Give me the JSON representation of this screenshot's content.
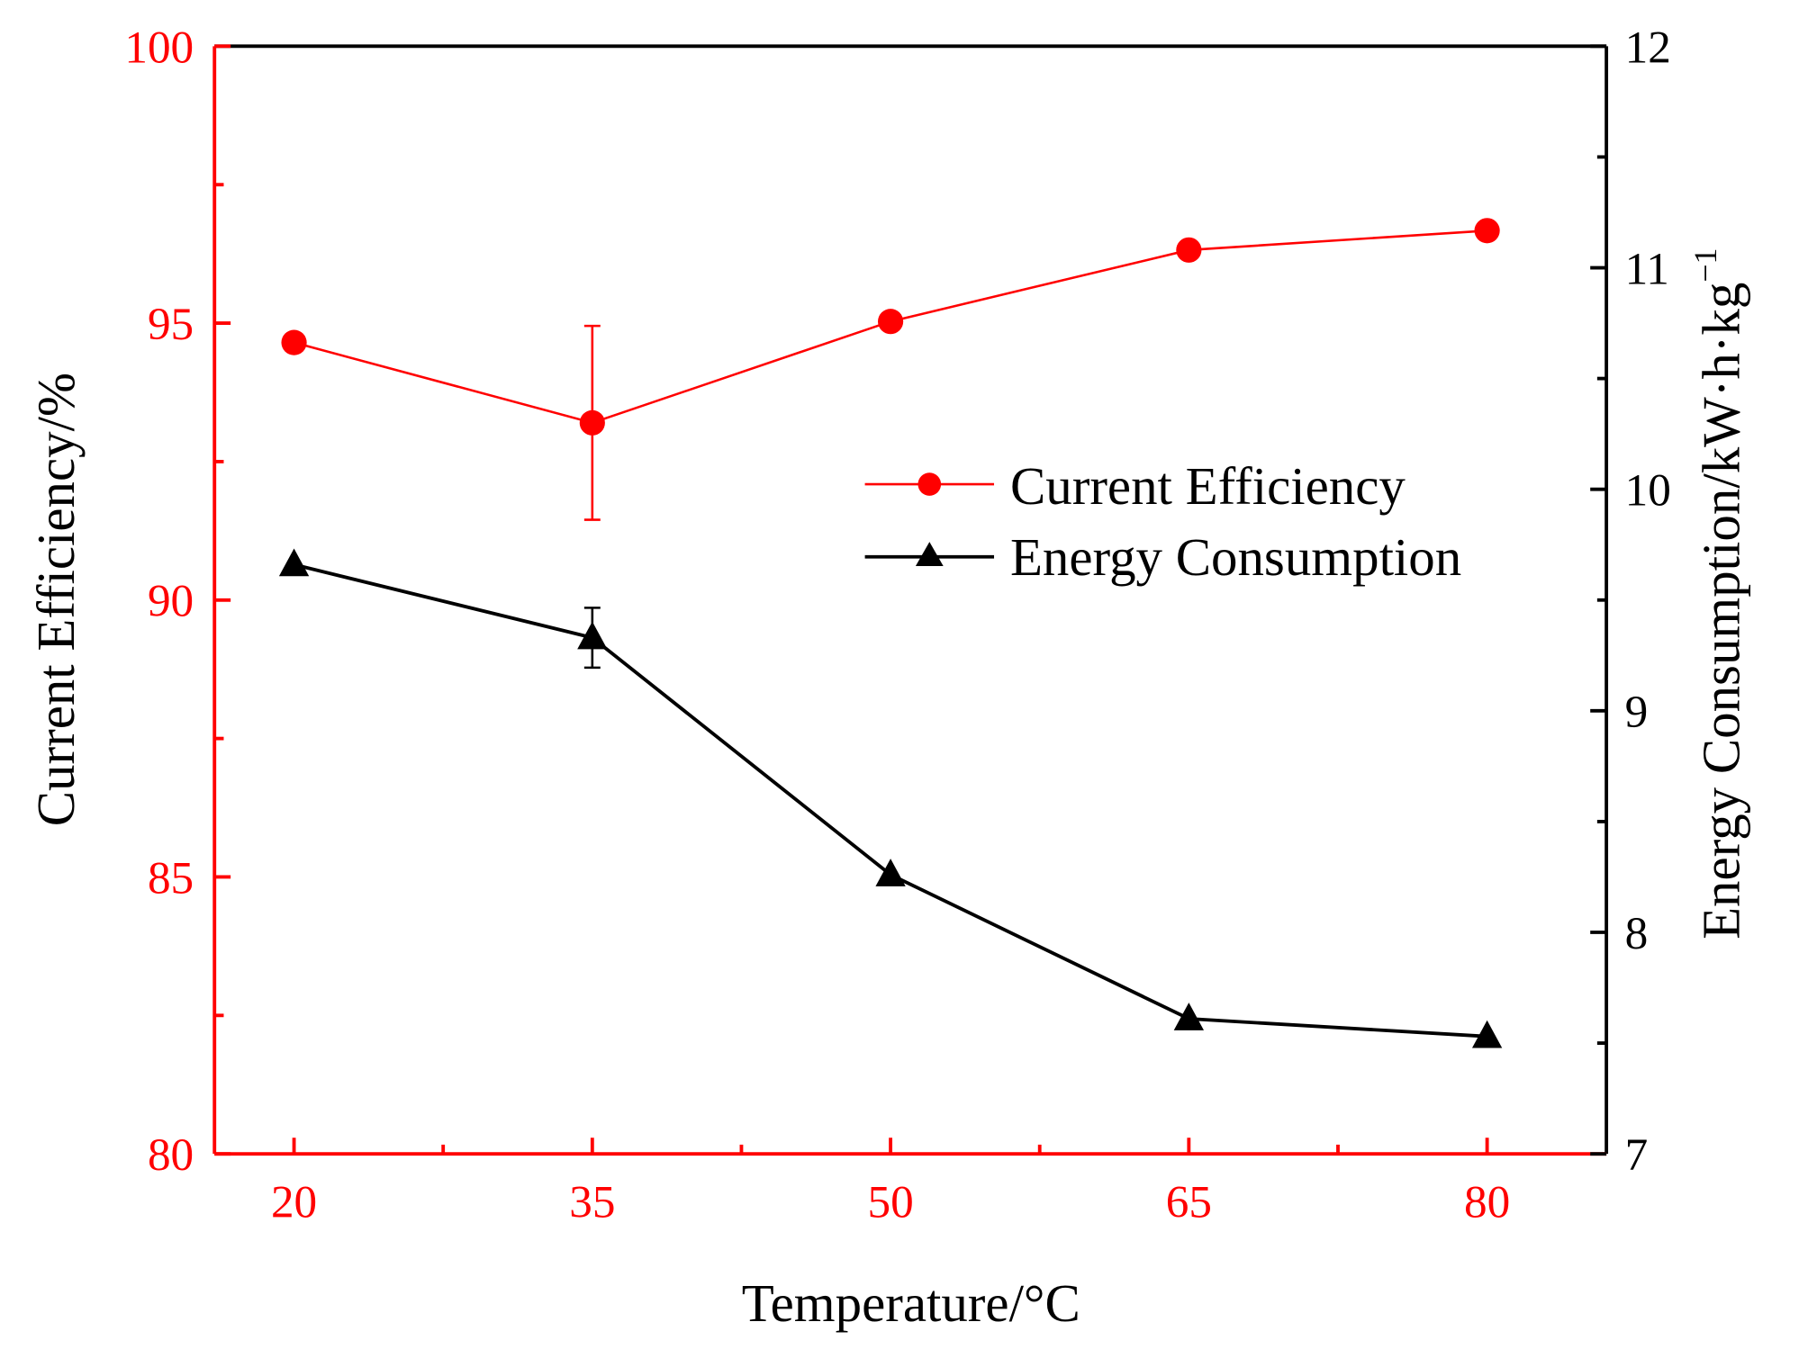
{
  "colors": {
    "ce": "#ff0000",
    "ec": "#000000"
  },
  "chart_data": {
    "type": "line",
    "xlabel": "Temperature/°C",
    "ylabel_left": "Current Efficiency/%",
    "ylabel_right_main": "Energy Consumption/kW·h·kg",
    "ylabel_right_sup": "−1",
    "x": [
      20,
      35,
      50,
      65,
      80
    ],
    "x_ticks": [
      "20",
      "35",
      "50",
      "65",
      "80"
    ],
    "y_left_ticks": [
      "80",
      "85",
      "90",
      "95",
      "100"
    ],
    "y_right_ticks": [
      "7",
      "8",
      "9",
      "10",
      "11",
      "12"
    ],
    "xlim": [
      16,
      86
    ],
    "ylim_left": [
      80,
      100
    ],
    "ylim_right": [
      7,
      12
    ],
    "series": [
      {
        "name": "Current Efficiency",
        "axis": "left",
        "marker": "circle",
        "values": [
          94.65,
          93.2,
          95.03,
          96.32,
          96.67
        ],
        "errors": [
          0,
          1.75,
          0,
          0,
          0
        ]
      },
      {
        "name": "Energy Consumption",
        "axis": "right",
        "marker": "triangle",
        "values": [
          9.66,
          9.33,
          8.26,
          7.61,
          7.53
        ],
        "errors": [
          0,
          0.135,
          0,
          0,
          0
        ]
      }
    ],
    "legend": "center-right",
    "grid": false
  }
}
